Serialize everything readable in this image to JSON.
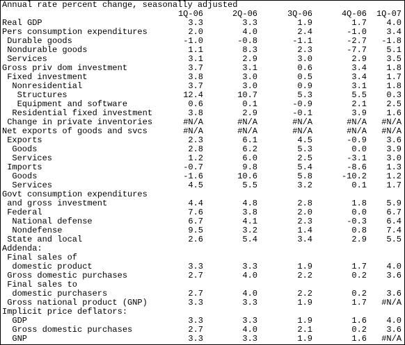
{
  "header": {
    "title": "Annual rate percent change, seasonally adjusted",
    "columns": [
      "1Q-06",
      "2Q-06",
      "3Q-06",
      "4Q-06",
      "1Q-07"
    ]
  },
  "table": {
    "rows": [
      {
        "label": "Real GDP",
        "values": [
          "3.3",
          "3.3",
          "1.9",
          "1.7",
          "4.0"
        ]
      },
      {
        "label": "Pers consumption expenditures",
        "values": [
          "2.0",
          "4.0",
          "2.4",
          "-1.0",
          "3.4"
        ]
      },
      {
        "label": "Durable goods",
        "values": [
          "-1.0",
          "-0.8",
          "-1.1",
          "-2.7",
          "-1.8"
        ]
      },
      {
        "label": "Nondurable goods",
        "values": [
          "1.1",
          "8.3",
          "2.3",
          "-7.7",
          "5.1"
        ]
      },
      {
        "label": "Services",
        "values": [
          "3.1",
          "2.9",
          "3.0",
          "2.9",
          "3.5"
        ]
      },
      {
        "label": "Gross priv dom investment",
        "values": [
          "3.7",
          "3.1",
          "0.6",
          "3.4",
          "1.8"
        ]
      },
      {
        "label": "Fixed investment",
        "values": [
          "3.8",
          "3.0",
          "0.5",
          "3.4",
          "1.7"
        ]
      },
      {
        "label": "Nonresidential",
        "values": [
          "3.7",
          "3.0",
          "0.9",
          "3.1",
          "1.8"
        ]
      },
      {
        "label": "Structures",
        "values": [
          "12.4",
          "10.7",
          "5.3",
          "5.5",
          "0.3"
        ]
      },
      {
        "label": "Equipment and software",
        "values": [
          "0.6",
          "0.1",
          "-0.9",
          "2.1",
          "2.5"
        ]
      },
      {
        "label": "Residential fixed investment",
        "values": [
          "3.8",
          "2.9",
          "-0.1",
          "3.9",
          "1.6"
        ]
      },
      {
        "label": "Change in private inventories",
        "values": [
          "#N/A",
          "#N/A",
          "#N/A",
          "#N/A",
          "#N/A"
        ]
      },
      {
        "label": "Net exports of goods and svcs",
        "values": [
          "#N/A",
          "#N/A",
          "#N/A",
          "#N/A",
          "#N/A"
        ]
      },
      {
        "label": "Exports",
        "values": [
          "2.3",
          "6.1",
          "4.5",
          "-0.9",
          "3.6"
        ]
      },
      {
        "label": "Goods",
        "values": [
          "2.8",
          "6.2",
          "5.3",
          "0.0",
          "3.9"
        ]
      },
      {
        "label": "Services",
        "values": [
          "1.2",
          "6.0",
          "2.5",
          "-3.1",
          "3.0"
        ]
      },
      {
        "label": "Imports",
        "values": [
          "-0.7",
          "9.8",
          "5.4",
          "-8.6",
          "1.3"
        ]
      },
      {
        "label": "Goods",
        "values": [
          "-1.6",
          "10.6",
          "5.8",
          "-10.2",
          "1.2"
        ]
      },
      {
        "label": "Services",
        "values": [
          "4.5",
          "5.5",
          "3.2",
          "0.1",
          "1.7"
        ]
      },
      {
        "label": "Govt consumption expenditures"
      },
      {
        "label": "and gross investment",
        "values": [
          "4.4",
          "4.8",
          "2.8",
          "1.8",
          "5.9"
        ]
      },
      {
        "label": "Federal",
        "values": [
          "7.6",
          "3.8",
          "2.0",
          "0.0",
          "6.7"
        ]
      },
      {
        "label": "National defense",
        "values": [
          "6.7",
          "4.1",
          "2.3",
          "-0.3",
          "6.4"
        ]
      },
      {
        "label": "Nondefense",
        "values": [
          "9.5",
          "3.2",
          "1.4",
          "0.8",
          "7.4"
        ]
      },
      {
        "label": "State and local",
        "values": [
          "2.6",
          "5.4",
          "3.4",
          "2.9",
          "5.5"
        ]
      },
      {
        "label": "Addenda:"
      },
      {
        "label": "Final sales of"
      },
      {
        "label": "domestic product",
        "values": [
          "3.3",
          "3.3",
          "1.9",
          "1.7",
          "4.0"
        ]
      },
      {
        "label": "Gross domestic purchases",
        "values": [
          "2.7",
          "4.0",
          "2.2",
          "0.2",
          "3.6"
        ]
      },
      {
        "label": "Final sales to"
      },
      {
        "label": "domestic purchasers",
        "values": [
          "2.7",
          "4.0",
          "2.2",
          "0.2",
          "3.6"
        ]
      },
      {
        "label": "Gross national product (GNP)",
        "values": [
          "3.3",
          "3.3",
          "1.9",
          "1.7",
          "#N/A"
        ]
      },
      {
        "label": "Implicit price deflators:"
      },
      {
        "label": "GDP",
        "values": [
          "3.3",
          "3.3",
          "1.9",
          "1.6",
          "4.0"
        ]
      },
      {
        "label": "Gross domestic purchases",
        "values": [
          "2.7",
          "4.0",
          "2.1",
          "0.2",
          "3.6"
        ]
      },
      {
        "label": "GNP",
        "values": [
          "3.3",
          "3.3",
          "1.9",
          "1.6",
          "#N/A"
        ]
      }
    ]
  }
}
